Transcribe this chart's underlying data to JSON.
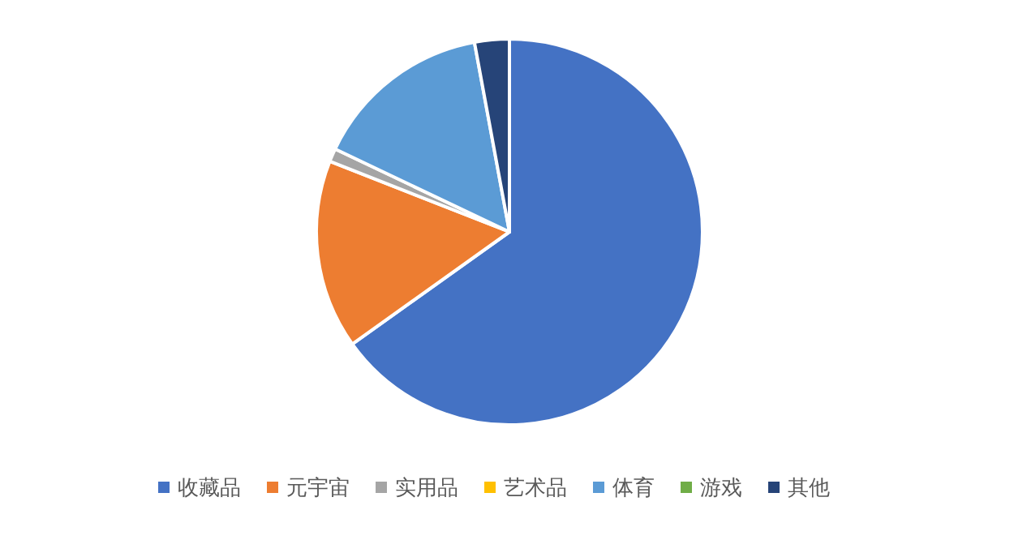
{
  "chart_data": {
    "type": "pie",
    "categories": [
      "收藏品",
      "元宇宙",
      "实用品",
      "艺术品",
      "体育",
      "游戏",
      "其他"
    ],
    "values": [
      65,
      15.8,
      1.1,
      null,
      15,
      null,
      2.9
    ],
    "colors": [
      "#4472c4",
      "#ed7d31",
      "#a5a5a5",
      "#ffc000",
      "#5b9bd5",
      "#70ad47",
      "#264478"
    ],
    "legend": "bottom"
  }
}
